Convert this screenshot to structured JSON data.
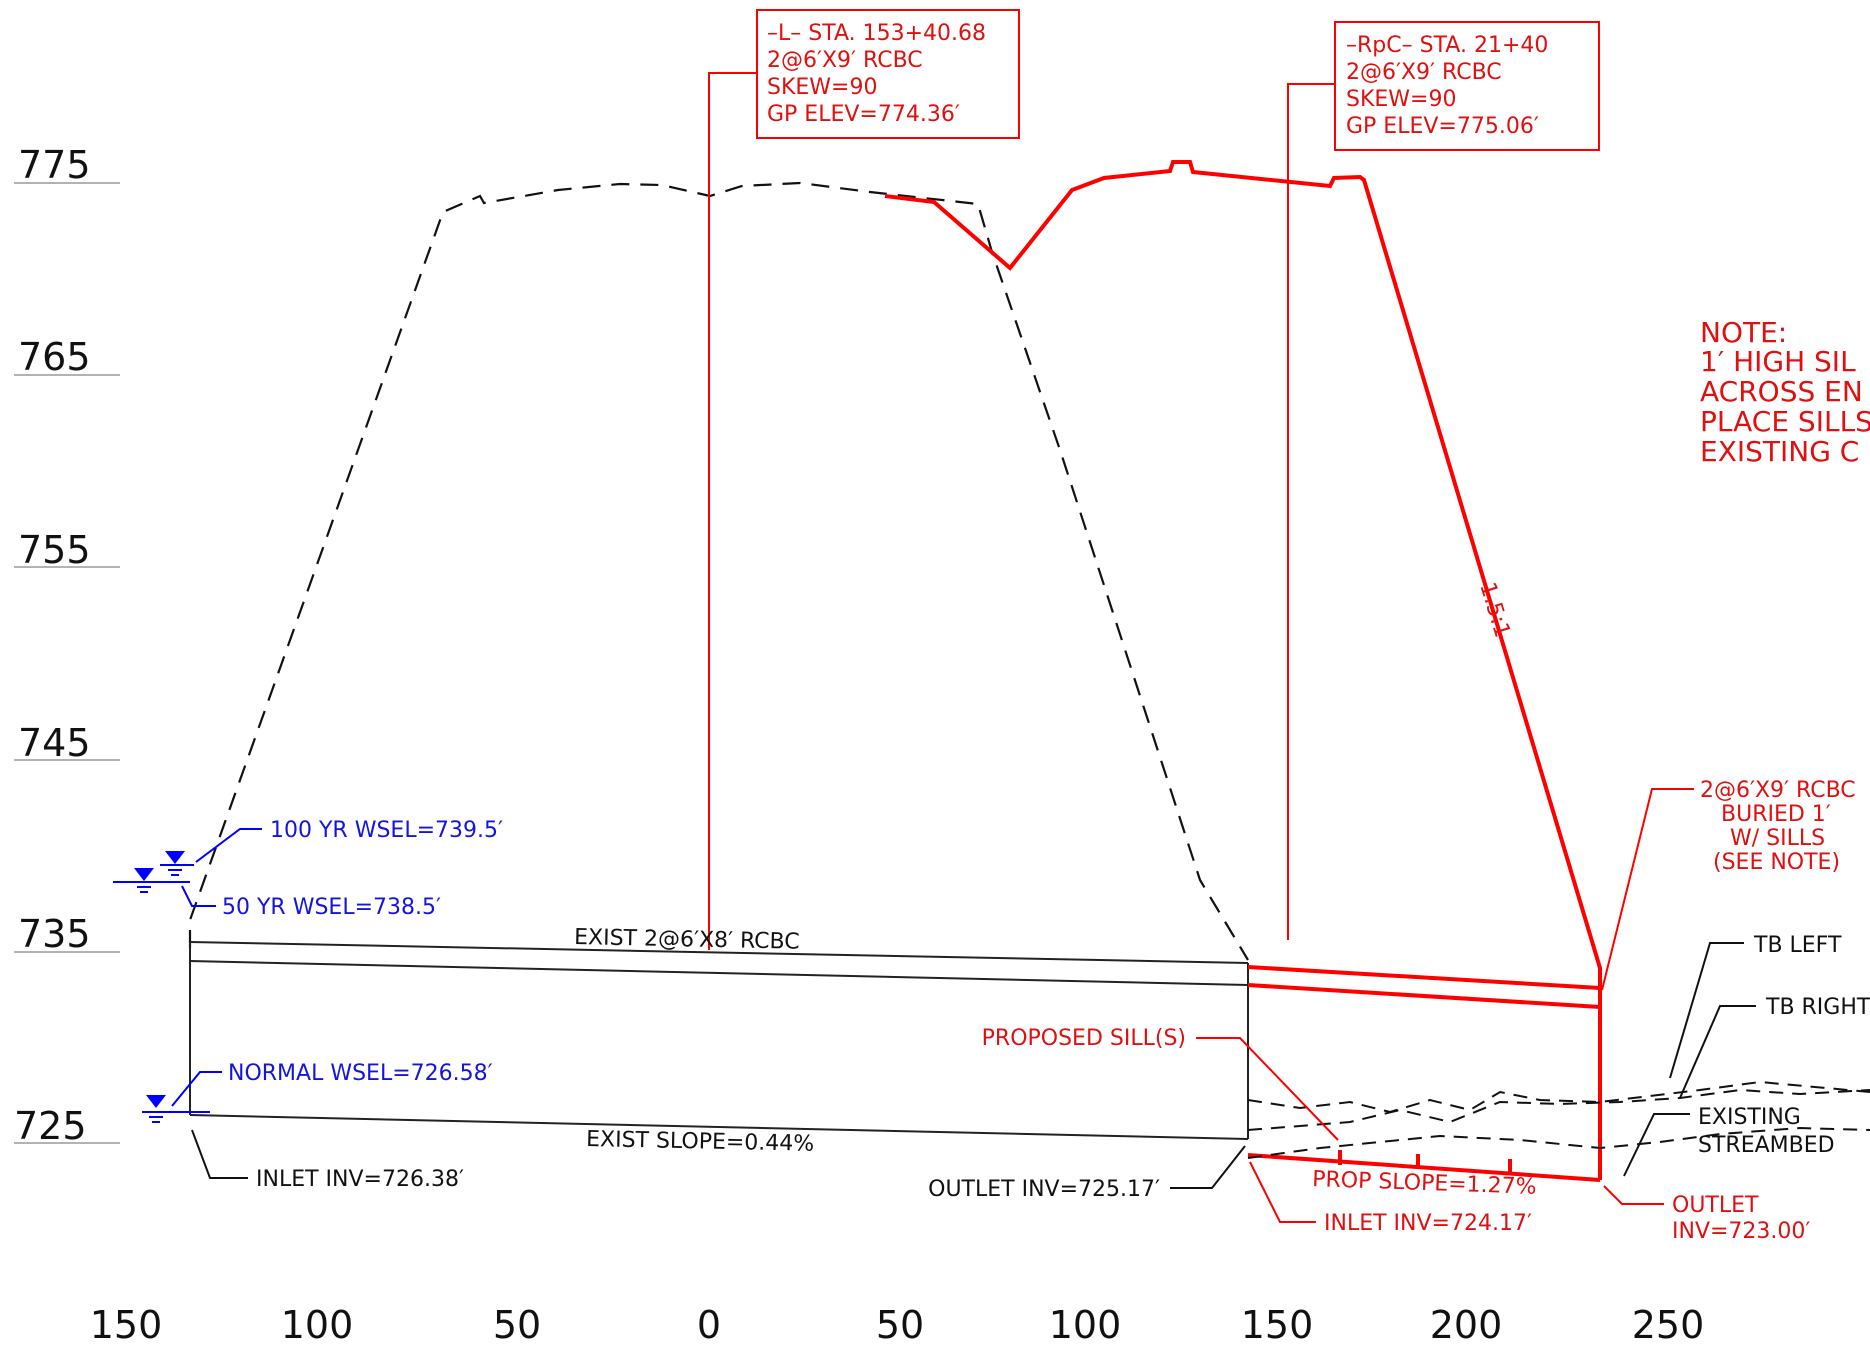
{
  "colors": {
    "existing": "#111111",
    "proposed": "#ff0000",
    "water": "#0000ff"
  },
  "y_axis_labels": [
    "775",
    "765",
    "755",
    "745",
    "735",
    "725"
  ],
  "x_axis_labels": [
    "150",
    "100",
    "50",
    "0",
    "50",
    "100",
    "150",
    "200",
    "250"
  ],
  "callout_l": {
    "line1": "–L– STA. 153+40.68",
    "line2": "2@6′X9′ RCBC",
    "line3": "SKEW=90",
    "line4": "GP ELEV=774.36′"
  },
  "callout_rpc": {
    "line1": "–RpC– STA. 21+40",
    "line2": "2@6′X9′ RCBC",
    "line3": "SKEW=90",
    "line4": "GP ELEV=775.06′"
  },
  "note": {
    "title": "NOTE:",
    "line1": "1′ HIGH SIL",
    "line2": "ACROSS EN",
    "line3": "PLACE SILLS",
    "line4": "EXISTING C"
  },
  "slope_label": "1.5:1",
  "water_levels": {
    "wsel_100": "100 YR WSEL=739.5′",
    "wsel_50": "50 YR WSEL=738.5′",
    "normal": "NORMAL WSEL=726.58′"
  },
  "existing_culvert": {
    "label": "EXIST 2@6′X8′ RCBC",
    "slope": "EXIST SLOPE=0.44%",
    "inlet_inv": "INLET INV=726.38′",
    "outlet_inv": "OUTLET INV=725.17′"
  },
  "proposed": {
    "sills": "PROPOSED SILL(S)",
    "slope": "PROP SLOPE=1.27%",
    "inlet_inv": "INLET INV=724.17′",
    "outlet_line1": "OUTLET",
    "outlet_line2": "INV=723.00′",
    "culvert_line1": "2@6′X9′ RCBC",
    "culvert_line2": "BURIED 1′",
    "culvert_line3": "W/ SILLS",
    "culvert_line4": "(SEE NOTE)"
  },
  "labels": {
    "tb_left": "TB LEFT",
    "tb_right": "TB RIGHT",
    "streambed_line1": "EXISTING",
    "streambed_line2": "STREAMBED"
  }
}
